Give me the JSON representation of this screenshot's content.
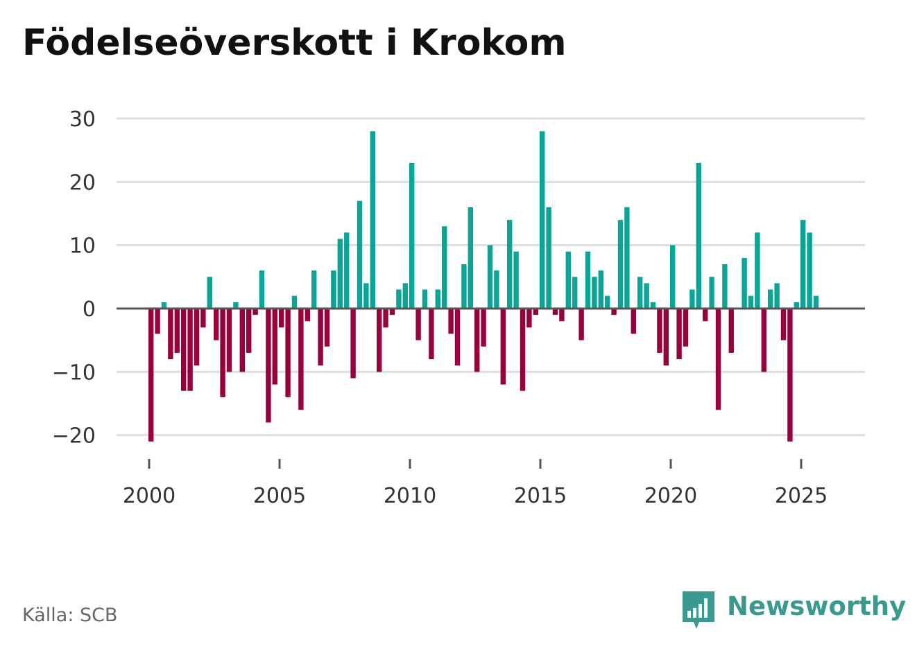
{
  "title": "Födelseöverskott i Krokom",
  "source": "Källa: SCB",
  "brand": {
    "name": "Newsworthy",
    "icon": "bar-chart-bubble-icon"
  },
  "colors": {
    "positive": "#0aa596",
    "negative": "#98003c",
    "grid": "#dddddd",
    "zero_line": "#555555",
    "text": "#333333",
    "brand": "#3a9a8f"
  },
  "chart_data": {
    "type": "bar",
    "title": "Födelseöverskott i Krokom",
    "xlabel": "",
    "ylabel": "",
    "ylim": [
      -25,
      31
    ],
    "xlim": [
      1999.0,
      2027.1
    ],
    "yticks": [
      30,
      20,
      10,
      0,
      -10,
      -20
    ],
    "ytick_labels": [
      "30",
      "20",
      "10",
      "0",
      "−10",
      "−20"
    ],
    "xticks": [
      2000,
      2005,
      2010,
      2015,
      2020,
      2025
    ],
    "xtick_labels": [
      "2000",
      "2005",
      "2010",
      "2015",
      "2020",
      "2025"
    ],
    "start_year": 2000,
    "periods_per_year": 4,
    "values": [
      -21,
      -4,
      1,
      -8,
      -7,
      -13,
      -13,
      -9,
      -3,
      5,
      -5,
      -14,
      -10,
      1,
      -10,
      -7,
      -1,
      6,
      -18,
      -12,
      -3,
      -14,
      2,
      -16,
      -2,
      6,
      -9,
      -6,
      6,
      11,
      12,
      -11,
      17,
      4,
      28,
      -10,
      -3,
      -1,
      3,
      4,
      23,
      -5,
      3,
      -8,
      3,
      13,
      -4,
      -9,
      7,
      16,
      -10,
      -6,
      10,
      6,
      -12,
      14,
      9,
      -13,
      -3,
      -1,
      28,
      16,
      -1,
      -2,
      9,
      5,
      -5,
      9,
      5,
      6,
      2,
      -1,
      14,
      16,
      -4,
      5,
      4,
      1,
      -7,
      -9,
      10,
      -8,
      -6,
      3,
      23,
      -2,
      5,
      -16,
      7,
      -7,
      0,
      8,
      2,
      12,
      -10,
      3,
      4,
      -5,
      -21,
      1,
      14,
      12,
      2
    ]
  }
}
